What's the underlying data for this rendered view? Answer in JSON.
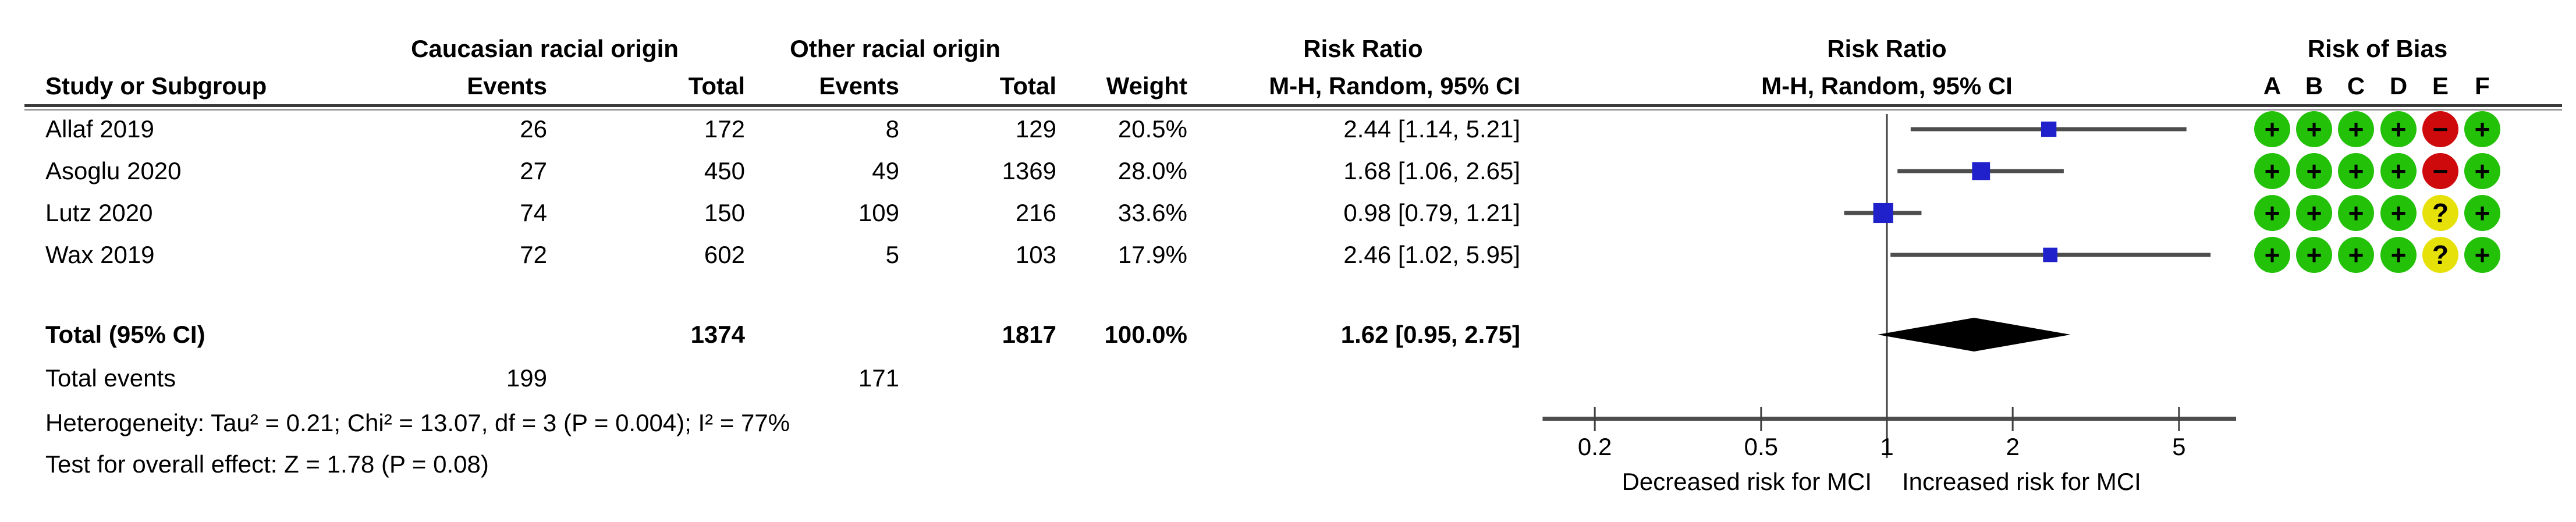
{
  "figure": {
    "headers": {
      "study": "Study or Subgroup",
      "group1": "Caucasian racial origin",
      "group2": "Other racial origin",
      "events": "Events",
      "total": "Total",
      "weight": "Weight",
      "risk_ratio": "Risk Ratio",
      "mh_random": "M-H, Random, 95% CI",
      "risk_of_bias": "Risk of Bias",
      "rob_columns": [
        "A",
        "B",
        "C",
        "D",
        "E",
        "F"
      ]
    },
    "rows": [
      {
        "study": "Allaf 2019",
        "events1": "26",
        "total1": "172",
        "events2": "8",
        "total2": "129",
        "weight": "20.5%",
        "rr_ci": "2.44 [1.14, 5.21]",
        "rob": [
          "+",
          "+",
          "+",
          "+",
          "-",
          "+"
        ]
      },
      {
        "study": "Asoglu 2020",
        "events1": "27",
        "total1": "450",
        "events2": "49",
        "total2": "1369",
        "weight": "28.0%",
        "rr_ci": "1.68 [1.06, 2.65]",
        "rob": [
          "+",
          "+",
          "+",
          "+",
          "-",
          "+"
        ]
      },
      {
        "study": "Lutz 2020",
        "events1": "74",
        "total1": "150",
        "events2": "109",
        "total2": "216",
        "weight": "33.6%",
        "rr_ci": "0.98 [0.79, 1.21]",
        "rob": [
          "+",
          "+",
          "+",
          "+",
          "?",
          "+"
        ]
      },
      {
        "study": "Wax 2019",
        "events1": "72",
        "total1": "602",
        "events2": "5",
        "total2": "103",
        "weight": "17.9%",
        "rr_ci": "2.46 [1.02, 5.95]",
        "rob": [
          "+",
          "+",
          "+",
          "+",
          "?",
          "+"
        ]
      }
    ],
    "total_row": {
      "label": "Total (95% CI)",
      "total1": "1374",
      "total2": "1817",
      "weight": "100.0%",
      "rr_ci": "1.62 [0.95, 2.75]"
    },
    "total_events": {
      "label": "Total events",
      "events1": "199",
      "events2": "171"
    },
    "heterogeneity": "Heterogeneity: Tau² = 0.21; Chi² = 13.07, df = 3 (P = 0.004); I² = 77%",
    "overall_effect": "Test for overall effect: Z = 1.78 (P = 0.08)"
  },
  "chart_data": {
    "type": "forest",
    "x_scale": "log",
    "axis_ticks": [
      0.2,
      0.5,
      1,
      2,
      5
    ],
    "axis_range": [
      0.15,
      6.85
    ],
    "center_value": 1,
    "studies": [
      {
        "name": "Allaf 2019",
        "rr": 2.44,
        "ci_low": 1.14,
        "ci_high": 5.21,
        "weight_pct": 20.5
      },
      {
        "name": "Asoglu 2020",
        "rr": 1.68,
        "ci_low": 1.06,
        "ci_high": 2.65,
        "weight_pct": 28.0
      },
      {
        "name": "Lutz 2020",
        "rr": 0.98,
        "ci_low": 0.79,
        "ci_high": 1.21,
        "weight_pct": 33.6
      },
      {
        "name": "Wax 2019",
        "rr": 2.46,
        "ci_low": 1.02,
        "ci_high": 5.95,
        "weight_pct": 17.9
      }
    ],
    "total": {
      "rr": 1.62,
      "ci_low": 0.95,
      "ci_high": 2.75
    },
    "xlabel_left": "Decreased risk for MCI",
    "xlabel_right": "Increased risk for MCI",
    "colors": {
      "square": "#2121cc",
      "ci_line": "#4d4d4d",
      "diamond": "#000000",
      "axis": "#404040",
      "rob_low": "#24c109",
      "rob_high": "#cf0a0c",
      "rob_unclear": "#e7e10a"
    }
  }
}
